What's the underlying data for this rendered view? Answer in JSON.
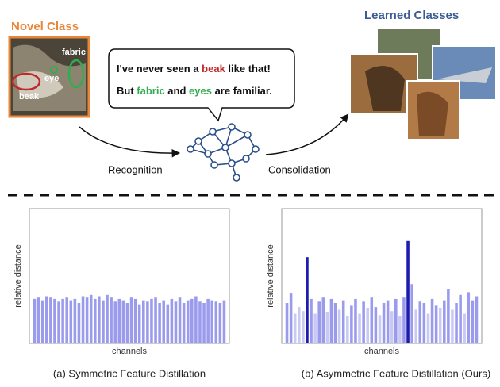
{
  "novel_class": {
    "title": "Novel Class",
    "labels": [
      "fabric",
      "eye",
      "beak"
    ]
  },
  "bubble": {
    "line1": [
      "I've never seen a ",
      "beak",
      " like that!"
    ],
    "line2": [
      "But ",
      "fabric",
      " and ",
      "eyes",
      " are familiar."
    ]
  },
  "arrows": {
    "left": "Recognition",
    "right": "Consolidation"
  },
  "learned_classes": {
    "title": "Learned Classes"
  },
  "chart_data": [
    {
      "type": "bar",
      "caption": "(a) Symmetric Feature Distillation",
      "y_label": "relative distance",
      "x_label": "channels",
      "ylim": [
        0,
        1
      ],
      "color": "#9b9bee",
      "values": [
        0.33,
        0.34,
        0.32,
        0.35,
        0.34,
        0.33,
        0.31,
        0.33,
        0.34,
        0.32,
        0.33,
        0.3,
        0.35,
        0.34,
        0.36,
        0.33,
        0.35,
        0.32,
        0.36,
        0.34,
        0.31,
        0.33,
        0.32,
        0.3,
        0.34,
        0.33,
        0.29,
        0.32,
        0.31,
        0.33,
        0.34,
        0.3,
        0.32,
        0.29,
        0.33,
        0.31,
        0.34,
        0.3,
        0.32,
        0.33,
        0.35,
        0.31,
        0.3,
        0.33,
        0.32,
        0.31,
        0.3,
        0.32
      ]
    },
    {
      "type": "bar",
      "caption": "(b) Asymmetric Feature Distillation (Ours)",
      "y_label": "relative distance",
      "x_label": "channels",
      "ylim": [
        0,
        1
      ],
      "values": [
        0.3,
        0.37,
        0.22,
        0.27,
        0.24,
        0.64,
        0.33,
        0.22,
        0.31,
        0.34,
        0.23,
        0.33,
        0.3,
        0.25,
        0.32,
        0.2,
        0.28,
        0.33,
        0.22,
        0.31,
        0.26,
        0.34,
        0.27,
        0.21,
        0.3,
        0.32,
        0.24,
        0.33,
        0.2,
        0.34,
        0.76,
        0.44,
        0.25,
        0.31,
        0.3,
        0.22,
        0.33,
        0.28,
        0.26,
        0.32,
        0.4,
        0.25,
        0.3,
        0.36,
        0.22,
        0.38,
        0.32,
        0.35
      ],
      "colors": [
        "#9b9bee",
        "#9b9bee",
        "#c9c9f4",
        "#c9c9f4",
        "#c9c9f4",
        "#1c1cae",
        "#9b9bee",
        "#c9c9f4",
        "#9b9bee",
        "#9b9bee",
        "#c9c9f4",
        "#9b9bee",
        "#9b9bee",
        "#c9c9f4",
        "#9b9bee",
        "#c9c9f4",
        "#9b9bee",
        "#9b9bee",
        "#c9c9f4",
        "#9b9bee",
        "#c9c9f4",
        "#9b9bee",
        "#9b9bee",
        "#c9c9f4",
        "#9b9bee",
        "#9b9bee",
        "#c9c9f4",
        "#9b9bee",
        "#c9c9f4",
        "#9b9bee",
        "#1c1cae",
        "#9b9bee",
        "#c9c9f4",
        "#9b9bee",
        "#9b9bee",
        "#c9c9f4",
        "#9b9bee",
        "#9b9bee",
        "#c9c9f4",
        "#9b9bee",
        "#9b9bee",
        "#c9c9f4",
        "#9b9bee",
        "#9b9bee",
        "#c9c9f4",
        "#9b9bee",
        "#9b9bee",
        "#9b9bee"
      ]
    }
  ]
}
